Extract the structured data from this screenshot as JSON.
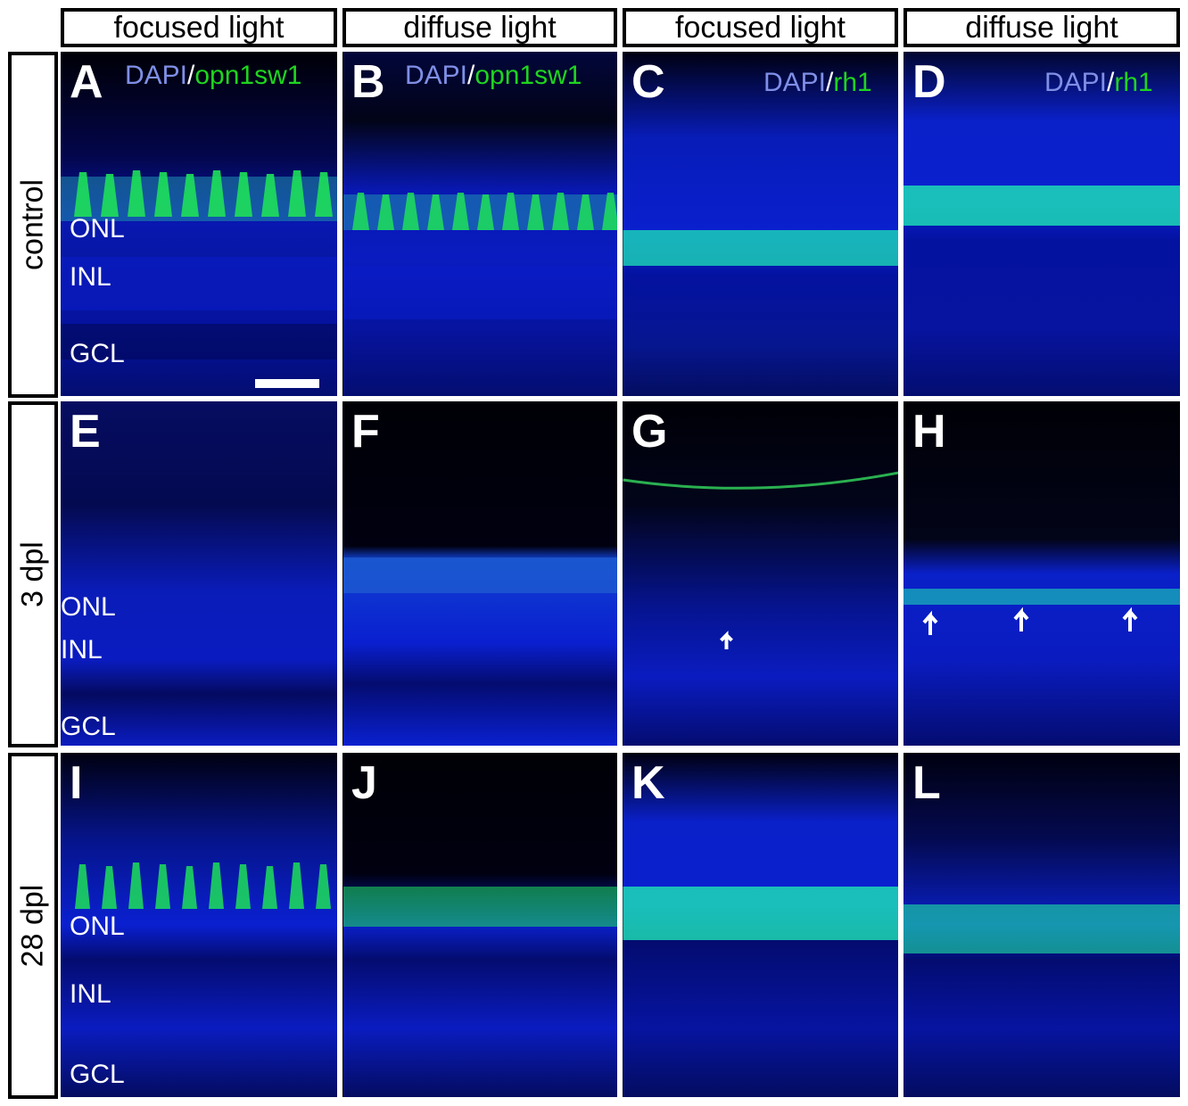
{
  "column_headers": [
    "focused light",
    "diffuse light",
    "focused light",
    "diffuse light"
  ],
  "row_headers": [
    "control",
    "3 dpl",
    "28 dpl"
  ],
  "stains": {
    "dapi": "DAPI",
    "separator": "/",
    "opn1sw1": "opn1sw1",
    "rh1": "rh1"
  },
  "panel_letters": [
    "A",
    "B",
    "C",
    "D",
    "E",
    "F",
    "G",
    "H",
    "I",
    "J",
    "K",
    "L"
  ],
  "layer_labels": {
    "onl": "ONL",
    "inl": "INL",
    "gcl": "GCL"
  },
  "colors": {
    "dapi_label": "#7f8fe6",
    "marker_label": "#1fd41f",
    "nuclei": "#1020d0",
    "uv_cones": "#19e65a",
    "rods": "#1ee6b4"
  }
}
